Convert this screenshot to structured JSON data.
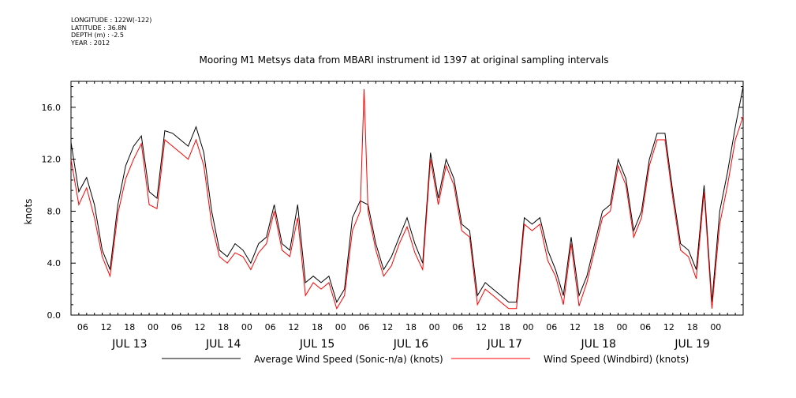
{
  "meta": {
    "longitude": "LONGITUDE : 122W(-122)",
    "latitude": "LATITUDE : 36.8N",
    "depth": "DEPTH (m) : -2.5",
    "year": "YEAR : 2012"
  },
  "chart_data": {
    "type": "line",
    "title": "Mooring M1 Metsys data from MBARI instrument id 1397 at original sampling intervals",
    "ylabel": "knots",
    "ylim": [
      0,
      18
    ],
    "yticks": [
      0,
      4,
      8,
      12,
      16
    ],
    "ytick_labels": [
      "0.0",
      "4.0",
      "8.0",
      "12.0",
      "16.0"
    ],
    "xlim": [
      "2012-07-12T21:00",
      "2012-07-20T01:00"
    ],
    "hour_tick_labels": [
      "06",
      "12",
      "18",
      "00",
      "06",
      "12",
      "18",
      "00",
      "06",
      "12",
      "18",
      "00",
      "06",
      "12",
      "18",
      "00",
      "06",
      "12",
      "18",
      "00",
      "06",
      "12",
      "18",
      "00",
      "06",
      "12",
      "18",
      "00"
    ],
    "day_labels": [
      "JUL 13",
      "JUL 14",
      "JUL 15",
      "JUL 16",
      "JUL 17",
      "JUL 18",
      "JUL 19"
    ],
    "grid": false,
    "legend": "bottom",
    "series": [
      {
        "name": "Average Wind Speed (Sonic-n/a) (knots)",
        "color": "#000000",
        "x": [
          "2012-07-12T21:00",
          "2012-07-12T23:00",
          "2012-07-13T01:00",
          "2012-07-13T03:00",
          "2012-07-13T05:00",
          "2012-07-13T07:00",
          "2012-07-13T09:00",
          "2012-07-13T11:00",
          "2012-07-13T13:00",
          "2012-07-13T15:00",
          "2012-07-13T17:00",
          "2012-07-13T19:00",
          "2012-07-13T21:00",
          "2012-07-13T23:00",
          "2012-07-14T01:00",
          "2012-07-14T03:00",
          "2012-07-14T05:00",
          "2012-07-14T07:00",
          "2012-07-14T09:00",
          "2012-07-14T11:00",
          "2012-07-14T13:00",
          "2012-07-14T15:00",
          "2012-07-14T17:00",
          "2012-07-14T19:00",
          "2012-07-14T21:00",
          "2012-07-14T23:00",
          "2012-07-15T01:00",
          "2012-07-15T03:00",
          "2012-07-15T05:00",
          "2012-07-15T07:00",
          "2012-07-15T09:00",
          "2012-07-15T11:00",
          "2012-07-15T13:00",
          "2012-07-15T15:00",
          "2012-07-15T17:00",
          "2012-07-15T19:00",
          "2012-07-15T21:00",
          "2012-07-15T23:00",
          "2012-07-16T01:00",
          "2012-07-16T03:00",
          "2012-07-16T05:00",
          "2012-07-16T07:00",
          "2012-07-16T09:00",
          "2012-07-16T11:00",
          "2012-07-16T13:00",
          "2012-07-16T15:00",
          "2012-07-16T17:00",
          "2012-07-16T19:00",
          "2012-07-16T21:00",
          "2012-07-16T23:00",
          "2012-07-17T01:00",
          "2012-07-17T03:00",
          "2012-07-17T05:00",
          "2012-07-17T07:00",
          "2012-07-17T09:00",
          "2012-07-17T11:00",
          "2012-07-17T13:00",
          "2012-07-17T15:00",
          "2012-07-17T17:00",
          "2012-07-17T19:00",
          "2012-07-17T21:00",
          "2012-07-17T23:00",
          "2012-07-18T01:00",
          "2012-07-18T03:00",
          "2012-07-18T05:00",
          "2012-07-18T07:00",
          "2012-07-18T09:00",
          "2012-07-18T11:00",
          "2012-07-18T13:00",
          "2012-07-18T15:00",
          "2012-07-18T17:00",
          "2012-07-18T19:00",
          "2012-07-18T21:00",
          "2012-07-18T23:00",
          "2012-07-19T01:00",
          "2012-07-19T03:00",
          "2012-07-19T05:00",
          "2012-07-19T07:00",
          "2012-07-19T09:00",
          "2012-07-19T11:00",
          "2012-07-19T13:00",
          "2012-07-19T15:00",
          "2012-07-19T17:00",
          "2012-07-19T19:00",
          "2012-07-19T21:00",
          "2012-07-19T23:00",
          "2012-07-20T01:00"
        ],
        "values": [
          13.3,
          9.5,
          10.6,
          8.5,
          5.0,
          3.5,
          8.5,
          11.5,
          13.0,
          13.8,
          9.5,
          9.0,
          14.2,
          14.0,
          13.5,
          13.0,
          14.5,
          12.5,
          8.0,
          5.0,
          4.5,
          5.5,
          5.0,
          4.0,
          5.5,
          6.0,
          8.5,
          5.5,
          5.0,
          8.5,
          2.5,
          3.0,
          2.5,
          3.0,
          1.0,
          2.0,
          7.5,
          8.8,
          8.5,
          5.5,
          3.5,
          4.5,
          6.0,
          7.5,
          5.5,
          4.0,
          12.5,
          9.0,
          12.0,
          10.5,
          7.0,
          6.5,
          1.5,
          2.5,
          2.0,
          1.5,
          1.0,
          1.0,
          7.5,
          7.0,
          7.5,
          5.0,
          3.5,
          1.5,
          6.0,
          1.5,
          3.0,
          5.5,
          8.0,
          8.5,
          12.0,
          10.5,
          6.5,
          8.0,
          12.0,
          14.0,
          14.0,
          9.5,
          5.5,
          5.0,
          3.5,
          10.0,
          1.0,
          8.0,
          11.0,
          14.5,
          17.6
        ]
      },
      {
        "name": "Wind Speed (Windbird) (knots)",
        "color": "#ff0000",
        "x": [
          "2012-07-12T21:00",
          "2012-07-12T23:00",
          "2012-07-13T01:00",
          "2012-07-13T03:00",
          "2012-07-13T05:00",
          "2012-07-13T07:00",
          "2012-07-13T09:00",
          "2012-07-13T11:00",
          "2012-07-13T13:00",
          "2012-07-13T15:00",
          "2012-07-13T17:00",
          "2012-07-13T19:00",
          "2012-07-13T21:00",
          "2012-07-13T23:00",
          "2012-07-14T01:00",
          "2012-07-14T03:00",
          "2012-07-14T05:00",
          "2012-07-14T07:00",
          "2012-07-14T09:00",
          "2012-07-14T11:00",
          "2012-07-14T13:00",
          "2012-07-14T15:00",
          "2012-07-14T17:00",
          "2012-07-14T19:00",
          "2012-07-14T21:00",
          "2012-07-14T23:00",
          "2012-07-15T01:00",
          "2012-07-15T03:00",
          "2012-07-15T05:00",
          "2012-07-15T07:00",
          "2012-07-15T09:00",
          "2012-07-15T11:00",
          "2012-07-15T13:00",
          "2012-07-15T15:00",
          "2012-07-15T17:00",
          "2012-07-15T19:00",
          "2012-07-15T21:00",
          "2012-07-15T23:00",
          "2012-07-16T00:00",
          "2012-07-16T01:00",
          "2012-07-16T03:00",
          "2012-07-16T05:00",
          "2012-07-16T07:00",
          "2012-07-16T09:00",
          "2012-07-16T11:00",
          "2012-07-16T13:00",
          "2012-07-16T15:00",
          "2012-07-16T17:00",
          "2012-07-16T19:00",
          "2012-07-16T21:00",
          "2012-07-16T23:00",
          "2012-07-17T01:00",
          "2012-07-17T03:00",
          "2012-07-17T05:00",
          "2012-07-17T07:00",
          "2012-07-17T09:00",
          "2012-07-17T11:00",
          "2012-07-17T13:00",
          "2012-07-17T15:00",
          "2012-07-17T17:00",
          "2012-07-17T19:00",
          "2012-07-17T21:00",
          "2012-07-17T23:00",
          "2012-07-18T01:00",
          "2012-07-18T03:00",
          "2012-07-18T05:00",
          "2012-07-18T07:00",
          "2012-07-18T09:00",
          "2012-07-18T11:00",
          "2012-07-18T13:00",
          "2012-07-18T15:00",
          "2012-07-18T17:00",
          "2012-07-18T19:00",
          "2012-07-18T21:00",
          "2012-07-18T23:00",
          "2012-07-19T01:00",
          "2012-07-19T03:00",
          "2012-07-19T05:00",
          "2012-07-19T07:00",
          "2012-07-19T09:00",
          "2012-07-19T11:00",
          "2012-07-19T13:00",
          "2012-07-19T15:00",
          "2012-07-19T17:00",
          "2012-07-19T19:00",
          "2012-07-19T21:00",
          "2012-07-19T23:00",
          "2012-07-20T01:00"
        ],
        "values": [
          12.0,
          8.5,
          9.8,
          7.5,
          4.5,
          3.0,
          7.8,
          10.5,
          12.0,
          13.2,
          8.5,
          8.2,
          13.5,
          13.0,
          12.5,
          12.0,
          13.5,
          11.5,
          7.0,
          4.5,
          4.0,
          4.8,
          4.5,
          3.5,
          4.8,
          5.5,
          8.0,
          5.0,
          4.5,
          7.5,
          1.5,
          2.5,
          2.0,
          2.5,
          0.5,
          1.5,
          6.5,
          8.0,
          17.4,
          8.0,
          5.0,
          3.0,
          3.8,
          5.5,
          6.8,
          4.8,
          3.5,
          12.0,
          8.5,
          11.5,
          10.0,
          6.5,
          6.0,
          0.8,
          2.0,
          1.5,
          1.0,
          0.5,
          0.5,
          7.0,
          6.5,
          7.0,
          4.2,
          3.0,
          0.8,
          5.5,
          0.7,
          2.5,
          5.0,
          7.5,
          8.0,
          11.5,
          10.0,
          6.0,
          7.5,
          11.5,
          13.5,
          13.5,
          9.0,
          5.0,
          4.5,
          2.8,
          9.5,
          0.5,
          7.0,
          10.0,
          13.5,
          15.3
        ]
      }
    ]
  }
}
